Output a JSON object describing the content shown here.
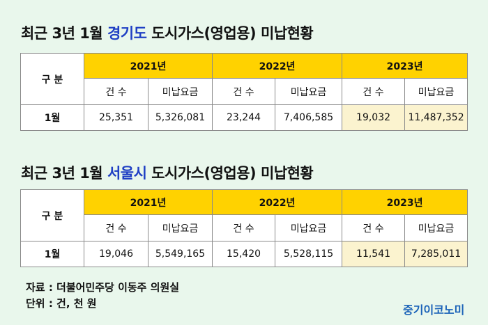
{
  "tables": [
    {
      "title_prefix": "최근 3년 1월 ",
      "title_region": "경기도",
      "title_suffix": " 도시가스(영업용) 미납현황",
      "header_label": "구 분",
      "years": [
        "2021년",
        "2022년",
        "2023년"
      ],
      "sub_headers": [
        "건 수",
        "미납요금"
      ],
      "row_label": "1월",
      "values": [
        "25,351",
        "5,326,081",
        "23,244",
        "7,406,585",
        "19,032",
        "11,487,352"
      ]
    },
    {
      "title_prefix": "최근 3년 1월 ",
      "title_region": "서울시",
      "title_suffix": " 도시가스(영업용) 미납현황",
      "header_label": "구 분",
      "years": [
        "2021년",
        "2022년",
        "2023년"
      ],
      "sub_headers": [
        "건 수",
        "미납요금"
      ],
      "row_label": "1월",
      "values": [
        "19,046",
        "5,549,165",
        "15,420",
        "5,528,115",
        "11,541",
        "7,285,011"
      ]
    }
  ],
  "source": "자료 : 더불어민주당 이동주 의원실",
  "unit": "단위 : 건, 천 원",
  "brand": "중기이코노미",
  "colors": {
    "background": "#e9f7ec",
    "year_header": "#ffd200",
    "highlight_2023": "#fbf3cf",
    "region_text": "#1f3fc4",
    "brand_text": "#1a62b8"
  }
}
